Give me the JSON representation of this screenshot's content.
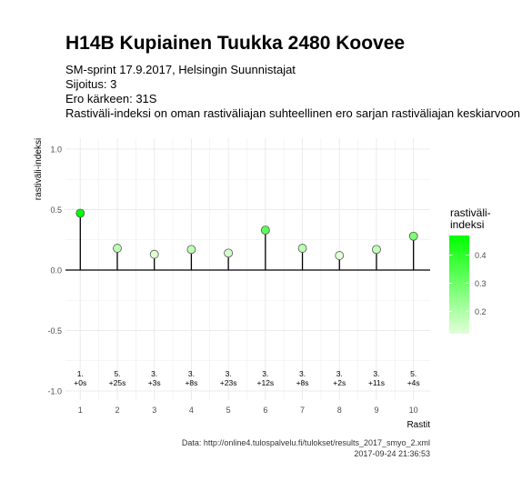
{
  "chart_data": {
    "type": "lollipop",
    "title": "H14B Kupiainen Tuukka 2480 Koovee",
    "subtitle_lines": [
      "SM-sprint 17.9.2017, Helsingin Suunnistajat",
      "Sijoitus: 3",
      "Ero kärkeen: 31S",
      "Rastiväli-indeksi on oman rastiväliajan suhteellinen ero sarjan rastiväliajan keskiarvoon"
    ],
    "xlabel": "Rastit",
    "ylabel": "rastiväli-indeksi",
    "x": [
      1,
      2,
      3,
      4,
      5,
      6,
      7,
      8,
      9,
      10
    ],
    "values": [
      0.47,
      0.18,
      0.13,
      0.17,
      0.14,
      0.33,
      0.18,
      0.12,
      0.17,
      0.28
    ],
    "point_labels": [
      [
        "1.",
        "+0s"
      ],
      [
        "5.",
        "+25s"
      ],
      [
        "3.",
        "+3s"
      ],
      [
        "3.",
        "+8s"
      ],
      [
        "3.",
        "+23s"
      ],
      [
        "3.",
        "+12s"
      ],
      [
        "3.",
        "+8s"
      ],
      [
        "3.",
        "+2s"
      ],
      [
        "3.",
        "+11s"
      ],
      [
        "5.",
        "+4s"
      ]
    ],
    "ylim": [
      -1.0,
      1.0
    ],
    "xlim": [
      0.6,
      10.45
    ],
    "yticks": [
      -1.0,
      -0.5,
      0.0,
      0.5,
      1.0
    ],
    "ytick_labels": [
      "-1.0",
      "-0.5",
      "0.0",
      "0.5",
      "1.0"
    ],
    "xticks": [
      1,
      2,
      3,
      4,
      5,
      6,
      7,
      8,
      9,
      10
    ],
    "grid": true,
    "legend": {
      "title_lines": [
        "rastiväli-",
        "indeksi"
      ],
      "placement": "right",
      "ticks": [
        0.2,
        0.3,
        0.4
      ],
      "range": [
        0.12,
        0.47
      ],
      "color_low": "#e1ffd7",
      "color_high": "#00ff00"
    },
    "caption_lines": [
      "Data: http://online4.tulospalvelu.fi/tulokset/results_2017_smyo_2.xml",
      "2017-09-24 21:36:53"
    ],
    "colors": {
      "grid": "#ebebeb",
      "zero_line": "#000000",
      "stem": "#000000",
      "point_stroke": "#555555",
      "text": "#333333",
      "axis_text": "#4d4d4d"
    }
  }
}
